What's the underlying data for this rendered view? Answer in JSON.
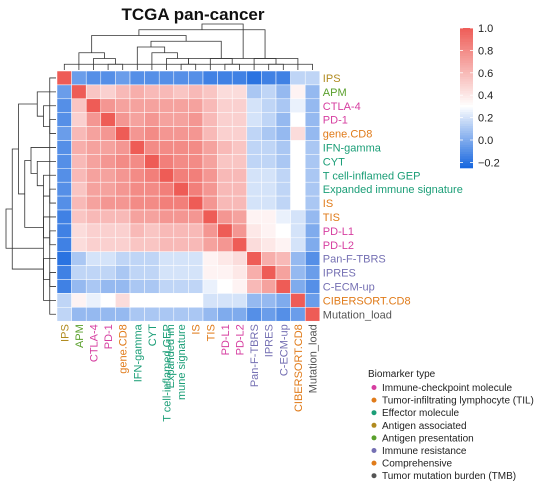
{
  "chart_data": {
    "type": "heatmap",
    "title": "TCGA pan-cancer",
    "rows": [
      "IPS",
      "APM",
      "CTLA-4",
      "PD-1",
      "gene.CD8",
      "IFN-gamma",
      "CYT",
      "T cell-inflamed GEP",
      "Expanded immune signature",
      "IS",
      "TIS",
      "PD-L1",
      "PD-L2",
      "Pan-F-TBRS",
      "IPRES",
      "C-ECM-up",
      "CIBERSORT.CD8",
      "Mutation_load"
    ],
    "columns": [
      "IPS",
      "APM",
      "CTLA-4",
      "PD-1",
      "gene.CD8",
      "IFN-gamma",
      "CYT",
      "T cell-inflamed GEP",
      "Expanded immune signature",
      "IS",
      "TIS",
      "PD-L1",
      "PD-L2",
      "Pan-F-TBRS",
      "IPRES",
      "C-ECM-up",
      "CIBERSORT.CD8",
      "Mutation_load"
    ],
    "column_labels_shown": [
      "IPS",
      "APM",
      "CTLA-4",
      "PD-1",
      "gene.CD8",
      "IFN-gamma",
      "CYT",
      "T cell-inflamed GEP",
      "mune signature",
      "IS",
      "TIS",
      "PD-L1",
      "PD-L2",
      "Pan-F-TBRS",
      "IPRES",
      "C-ECM-up",
      "CIBERSORT.CD8",
      "Mutation_load"
    ],
    "column_extra_label": {
      "text": "Expanded im",
      "column": 8
    },
    "values": [
      [
        1.0,
        -0.05,
        -0.1,
        -0.1,
        -0.05,
        -0.1,
        -0.1,
        -0.1,
        -0.1,
        -0.1,
        -0.15,
        -0.15,
        -0.15,
        -0.2,
        -0.15,
        -0.15,
        0.15,
        0.15
      ],
      [
        -0.05,
        1.0,
        0.55,
        0.5,
        0.6,
        0.65,
        0.6,
        0.6,
        0.55,
        0.6,
        0.55,
        0.45,
        0.45,
        0.1,
        0.15,
        0.05,
        0.35,
        0.05
      ],
      [
        -0.1,
        0.55,
        1.0,
        0.75,
        0.7,
        0.7,
        0.7,
        0.7,
        0.7,
        0.7,
        0.6,
        0.5,
        0.5,
        0.2,
        0.15,
        0.1,
        0.25,
        0.05
      ],
      [
        -0.1,
        0.5,
        0.75,
        1.0,
        0.75,
        0.7,
        0.75,
        0.7,
        0.7,
        0.75,
        0.6,
        0.5,
        0.5,
        0.2,
        0.15,
        0.05,
        0.3,
        0.05
      ],
      [
        -0.05,
        0.6,
        0.7,
        0.75,
        1.0,
        0.75,
        0.8,
        0.75,
        0.75,
        0.75,
        0.6,
        0.5,
        0.5,
        0.15,
        0.1,
        0.05,
        0.45,
        0.05
      ],
      [
        -0.1,
        0.65,
        0.7,
        0.7,
        0.75,
        1.0,
        0.8,
        0.8,
        0.8,
        0.8,
        0.7,
        0.6,
        0.55,
        0.15,
        0.15,
        0.1,
        0.3,
        0.1
      ],
      [
        -0.1,
        0.6,
        0.7,
        0.75,
        0.8,
        0.8,
        1.0,
        0.85,
        0.8,
        0.8,
        0.7,
        0.55,
        0.55,
        0.15,
        0.15,
        0.1,
        0.3,
        0.1
      ],
      [
        -0.1,
        0.6,
        0.7,
        0.7,
        0.75,
        0.8,
        0.85,
        1.0,
        0.85,
        0.85,
        0.75,
        0.6,
        0.6,
        0.2,
        0.2,
        0.15,
        0.3,
        0.1
      ],
      [
        -0.1,
        0.55,
        0.7,
        0.7,
        0.75,
        0.8,
        0.8,
        0.85,
        1.0,
        0.85,
        0.75,
        0.6,
        0.6,
        0.2,
        0.2,
        0.15,
        0.3,
        0.1
      ],
      [
        -0.1,
        0.6,
        0.7,
        0.75,
        0.75,
        0.8,
        0.8,
        0.85,
        0.85,
        1.0,
        0.75,
        0.6,
        0.6,
        0.2,
        0.2,
        0.15,
        0.3,
        0.1
      ],
      [
        -0.15,
        0.55,
        0.6,
        0.6,
        0.6,
        0.7,
        0.7,
        0.75,
        0.75,
        0.75,
        1.0,
        0.75,
        0.7,
        0.35,
        0.35,
        0.25,
        0.2,
        0.05
      ],
      [
        -0.15,
        0.45,
        0.5,
        0.5,
        0.5,
        0.6,
        0.55,
        0.6,
        0.6,
        0.6,
        0.75,
        1.0,
        0.75,
        0.4,
        0.35,
        0.3,
        0.2,
        0.0
      ],
      [
        -0.15,
        0.45,
        0.5,
        0.5,
        0.5,
        0.55,
        0.55,
        0.6,
        0.6,
        0.6,
        0.7,
        0.75,
        1.0,
        0.45,
        0.4,
        0.35,
        0.2,
        0.0
      ],
      [
        -0.2,
        0.1,
        0.2,
        0.2,
        0.15,
        0.15,
        0.15,
        0.2,
        0.2,
        0.2,
        0.35,
        0.4,
        0.45,
        1.0,
        0.65,
        0.6,
        0.05,
        -0.1
      ],
      [
        -0.15,
        0.15,
        0.15,
        0.15,
        0.1,
        0.15,
        0.15,
        0.2,
        0.2,
        0.2,
        0.35,
        0.35,
        0.4,
        0.65,
        1.0,
        0.7,
        0.05,
        -0.05
      ],
      [
        -0.15,
        0.05,
        0.1,
        0.05,
        0.05,
        0.1,
        0.1,
        0.15,
        0.15,
        0.15,
        0.25,
        0.3,
        0.35,
        0.6,
        0.7,
        1.0,
        0.0,
        -0.1
      ],
      [
        0.15,
        0.35,
        0.25,
        0.3,
        0.45,
        0.3,
        0.3,
        0.3,
        0.3,
        0.3,
        0.2,
        0.2,
        0.2,
        0.05,
        0.05,
        0.0,
        1.0,
        -0.05
      ],
      [
        0.15,
        0.05,
        0.05,
        0.05,
        0.05,
        0.1,
        0.1,
        0.1,
        0.1,
        0.1,
        0.05,
        0.0,
        0.0,
        -0.1,
        -0.05,
        -0.1,
        -0.05,
        1.0
      ]
    ],
    "colorbar": {
      "min": -0.25,
      "max": 1.0,
      "ticks": [
        1.0,
        0.8,
        0.6,
        0.4,
        0.2,
        0.0,
        -0.2
      ],
      "tick_labels": [
        "1.0",
        "0.8",
        "0.6",
        "0.4",
        "0.2",
        "0.0",
        "−0.2"
      ]
    },
    "label_colors": {
      "IPS": "#b08a1e",
      "APM": "#5aa02c",
      "CTLA-4": "#d63ea0",
      "PD-1": "#d63ea0",
      "gene.CD8": "#e07b1a",
      "IFN-gamma": "#1b9e77",
      "CYT": "#1b9e77",
      "T cell-inflamed GEP": "#1b9e77",
      "Expanded immune signature": "#1b9e77",
      "IS": "#e07b1a",
      "TIS": "#e07b1a",
      "PD-L1": "#d63ea0",
      "PD-L2": "#d63ea0",
      "Pan-F-TBRS": "#7570b3",
      "IPRES": "#7570b3",
      "C-ECM-up": "#7570b3",
      "CIBERSORT.CD8": "#e07b1a",
      "Mutation_load": "#555555"
    },
    "legend": {
      "title": "Biomarker type",
      "items": [
        {
          "label": "Immune-checkpoint molecule",
          "color": "#d63ea0"
        },
        {
          "label": "Tumor-infiltrating lymphocyte (TIL)",
          "color": "#e07b1a"
        },
        {
          "label": "Effector molecule",
          "color": "#1b9e77"
        },
        {
          "label": "Antigen associated",
          "color": "#b08a1e"
        },
        {
          "label": "Antigen presentation",
          "color": "#5aa02c"
        },
        {
          "label": "Immune resistance",
          "color": "#7570b3"
        },
        {
          "label": "Comprehensive",
          "color": "#e07b1a"
        },
        {
          "label": "Tumor mutation burden (TMB)",
          "color": "#555555"
        }
      ]
    }
  }
}
